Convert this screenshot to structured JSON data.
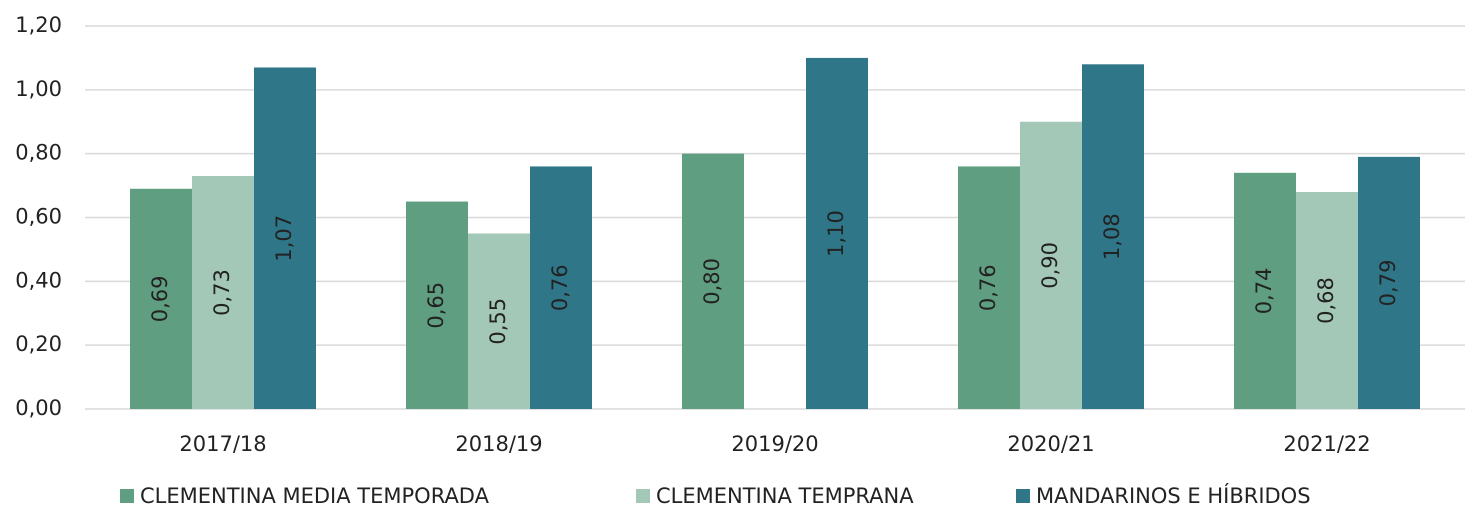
{
  "chart_data": {
    "type": "bar",
    "categories": [
      "2017/18",
      "2018/19",
      "2019/20",
      "2020/21",
      "2021/22"
    ],
    "series": [
      {
        "name": "CLEMENTINA MEDIA TEMPORADA",
        "color": "#5f9e80",
        "values": [
          0.69,
          0.65,
          0.8,
          0.76,
          0.74
        ],
        "value_labels": [
          "0,69",
          "0,65",
          "0,80",
          "0,76",
          "0,74"
        ]
      },
      {
        "name": "CLEMENTINA TEMPRANA",
        "color": "#a3c8b8",
        "values": [
          0.73,
          0.55,
          null,
          0.9,
          0.68
        ],
        "value_labels": [
          "0,73",
          "0,55",
          null,
          "0,90",
          "0,68"
        ]
      },
      {
        "name": "MANDARINOS E HÍBRIDOS",
        "color": "#2e7688",
        "values": [
          1.07,
          0.76,
          1.1,
          1.08,
          0.79
        ],
        "value_labels": [
          "1,07",
          "0,76",
          "1,10",
          "1,08",
          "0,79"
        ]
      }
    ],
    "ylim": [
      0,
      1.2
    ],
    "yticks": [
      {
        "value": 0,
        "label": "0,00"
      },
      {
        "value": 0.2,
        "label": "0,20"
      },
      {
        "value": 0.4,
        "label": "0,40"
      },
      {
        "value": 0.6,
        "label": "0,60"
      },
      {
        "value": 0.8,
        "label": "0,80"
      },
      {
        "value": 1.0,
        "label": "1,00"
      },
      {
        "value": 1.2,
        "label": "1,20"
      }
    ],
    "grid": true,
    "legend": "bottom"
  }
}
